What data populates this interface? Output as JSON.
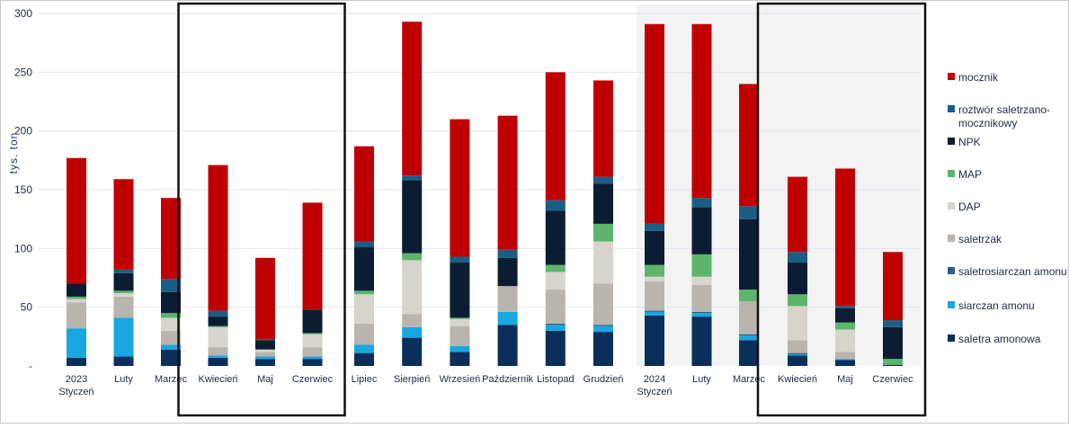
{
  "chart_data": {
    "type": "bar",
    "stacked": true,
    "ylabel": "tys. ton",
    "ylim": [
      0,
      300
    ],
    "yticks": [
      "-",
      "50",
      "100",
      "150",
      "200",
      "250",
      "300"
    ],
    "grid": true,
    "legend_position": "right",
    "categories": [
      [
        "2023",
        "Styczeń"
      ],
      [
        "Luty"
      ],
      [
        "Marzec"
      ],
      [
        "Kwiecień"
      ],
      [
        "Maj"
      ],
      [
        "Czerwiec"
      ],
      [
        "Lipiec"
      ],
      [
        "Sierpień"
      ],
      [
        "Wrzesień"
      ],
      [
        "Październik"
      ],
      [
        "Listopad"
      ],
      [
        "Grudzień"
      ],
      [
        "2024",
        "Styczeń"
      ],
      [
        "Luty"
      ],
      [
        "Marzec"
      ],
      [
        "Kwiecień"
      ],
      [
        "Maj"
      ],
      [
        "Czerwiec"
      ]
    ],
    "series": [
      {
        "name": "saletra amonowa",
        "color": "#0b2f5b",
        "values": [
          7,
          8,
          14,
          7,
          6,
          6,
          11,
          24,
          12,
          35,
          30,
          29,
          43,
          42,
          22,
          9,
          5,
          1
        ]
      },
      {
        "name": "siarczan amonu",
        "color": "#18a7e0",
        "values": [
          25,
          33,
          4,
          2,
          2,
          2,
          7,
          9,
          5,
          11,
          5,
          5,
          3,
          3,
          4,
          1,
          1,
          0
        ]
      },
      {
        "name": "saletrosiarczan amonu",
        "color": "#2e5d86",
        "values": [
          0,
          0,
          0,
          0,
          0,
          0,
          0,
          0,
          0,
          0,
          1,
          1,
          1,
          1,
          1,
          1,
          0,
          0
        ]
      },
      {
        "name": "saletrzak",
        "color": "#b9b4ad",
        "values": [
          22,
          18,
          12,
          7,
          4,
          8,
          18,
          11,
          17,
          22,
          29,
          35,
          25,
          23,
          28,
          11,
          6,
          0
        ]
      },
      {
        "name": "DAP",
        "color": "#d7d3cd",
        "values": [
          3,
          3,
          11,
          17,
          2,
          11,
          25,
          46,
          6,
          0,
          15,
          36,
          4,
          7,
          0,
          29,
          19,
          0
        ]
      },
      {
        "name": "MAP",
        "color": "#5bb56b",
        "values": [
          2,
          2,
          4,
          1,
          0,
          1,
          3,
          6,
          1,
          0,
          6,
          15,
          10,
          19,
          10,
          10,
          6,
          5
        ]
      },
      {
        "name": "NPK",
        "color": "#0c1d33",
        "values": [
          11,
          15,
          18,
          8,
          8,
          20,
          37,
          62,
          47,
          24,
          46,
          34,
          29,
          40,
          60,
          27,
          12,
          27
        ]
      },
      {
        "name": "roztwór saletrzano-mocznikowy",
        "color": "#1a5e85",
        "values": [
          0,
          3,
          11,
          5,
          1,
          0,
          5,
          4,
          5,
          7,
          9,
          6,
          6,
          8,
          11,
          9,
          2,
          6
        ]
      },
      {
        "name": "mocznik",
        "color": "#c00000",
        "values": [
          107,
          77,
          69,
          124,
          69,
          91,
          81,
          131,
          117,
          114,
          109,
          82,
          170,
          148,
          104,
          64,
          117,
          58
        ]
      }
    ],
    "highlight_boxes": [
      [
        3,
        5
      ],
      [
        15,
        17
      ]
    ],
    "legend_order": [
      [
        "mocznik"
      ],
      [
        "roztwór saletrzano-",
        "mocznikowy"
      ],
      [
        "NPK"
      ],
      [
        "MAP"
      ],
      [
        "DAP"
      ],
      [
        "saletrzak"
      ],
      [
        "saletrosiarczan amonu"
      ],
      [
        "siarczan amonu"
      ],
      [
        "saletra amonowa"
      ]
    ]
  }
}
